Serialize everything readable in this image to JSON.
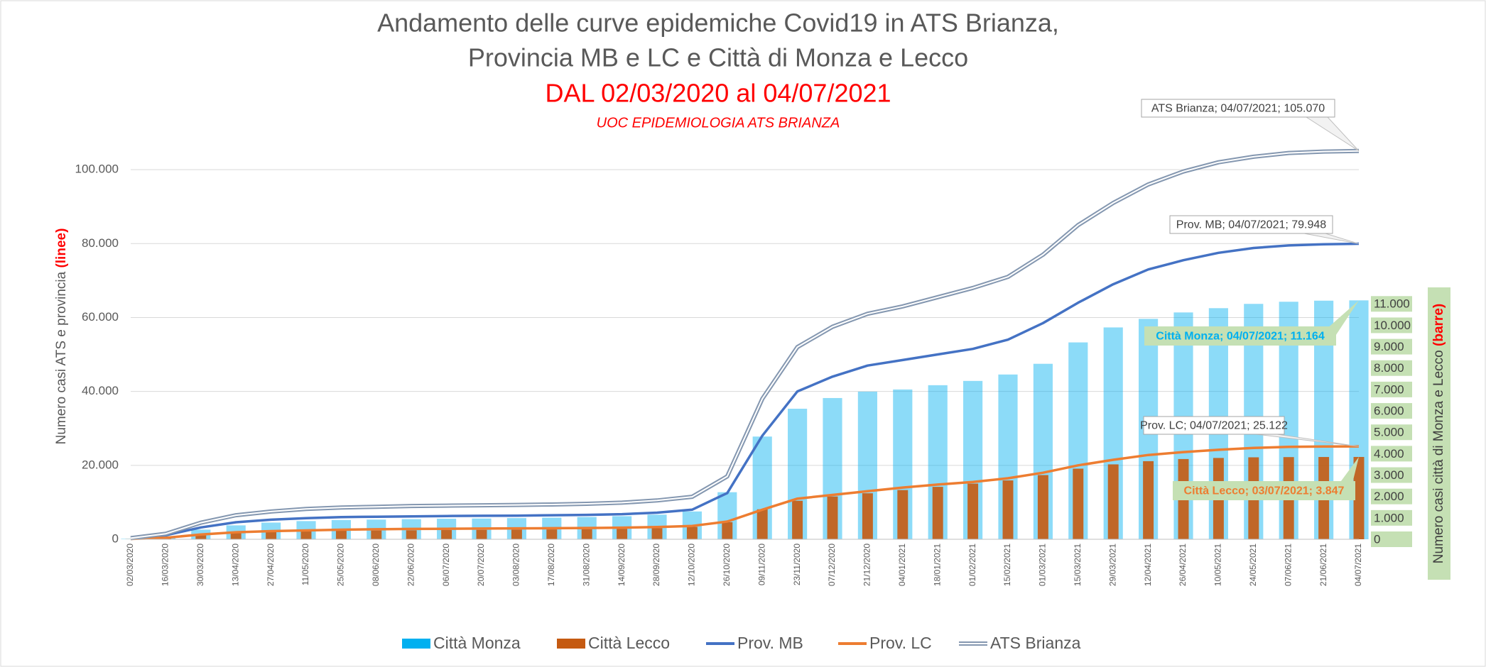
{
  "chart_data": {
    "type": "combo",
    "title": [
      "Andamento delle curve epidemiche Covid19 in ATS Brianza,",
      "Provincia MB e LC e Città di Monza e Lecco"
    ],
    "subtitle": "DAL 02/03/2020 al 04/07/2021",
    "source": "UOC EPIDEMIOLOGIA ATS BRIANZA",
    "y_label": [
      "Numero casi ATS e  provincia ",
      "(linee)"
    ],
    "y2_label": [
      "Numero casi città di Monza e Lecco ",
      "(barre)"
    ],
    "categories": [
      "02/03/2020",
      "16/03/2020",
      "30/03/2020",
      "13/04/2020",
      "27/04/2020",
      "11/05/2020",
      "25/05/2020",
      "08/06/2020",
      "22/06/2020",
      "06/07/2020",
      "20/07/2020",
      "03/08/2020",
      "17/08/2020",
      "31/08/2020",
      "14/09/2020",
      "28/09/2020",
      "12/10/2020",
      "26/10/2020",
      "09/11/2020",
      "23/11/2020",
      "07/12/2020",
      "21/12/2020",
      "04/01/2021",
      "18/01/2021",
      "01/02/2021",
      "15/02/2021",
      "01/03/2021",
      "15/03/2021",
      "29/03/2021",
      "12/04/2021",
      "26/04/2021",
      "10/05/2021",
      "24/05/2021",
      "07/06/2021",
      "21/06/2021",
      "04/07/2021"
    ],
    "series": [
      {
        "name": "Città Monza",
        "type": "bar",
        "axis": "y2",
        "color": "#00b0f0",
        "values": [
          20,
          150,
          450,
          650,
          780,
          850,
          900,
          920,
          940,
          960,
          970,
          990,
          1010,
          1040,
          1080,
          1150,
          1300,
          2200,
          4800,
          6100,
          6600,
          6900,
          7000,
          7200,
          7400,
          7700,
          8200,
          9200,
          9900,
          10300,
          10600,
          10800,
          11000,
          11100,
          11150,
          11164
        ]
      },
      {
        "name": "Città Lecco",
        "type": "bar",
        "axis": "y2",
        "color": "#c55a11",
        "values": [
          5,
          50,
          180,
          300,
          350,
          380,
          400,
          410,
          420,
          430,
          440,
          450,
          460,
          470,
          490,
          520,
          580,
          800,
          1400,
          1800,
          2000,
          2150,
          2300,
          2450,
          2600,
          2750,
          3000,
          3300,
          3500,
          3650,
          3750,
          3800,
          3830,
          3840,
          3845,
          3847
        ]
      },
      {
        "name": "Prov. MB",
        "type": "line",
        "color": "#4472c4",
        "values": [
          200,
          1100,
          3200,
          4600,
          5300,
          5700,
          6000,
          6100,
          6200,
          6300,
          6350,
          6400,
          6500,
          6600,
          6800,
          7200,
          8000,
          12500,
          28000,
          40000,
          44000,
          47000,
          48500,
          50000,
          51500,
          54000,
          58500,
          64000,
          69000,
          73000,
          75500,
          77500,
          78800,
          79500,
          79800,
          79948
        ]
      },
      {
        "name": "Prov. LC",
        "type": "line",
        "color": "#ed7d31",
        "values": [
          100,
          400,
          1300,
          1900,
          2200,
          2400,
          2600,
          2700,
          2800,
          2850,
          2900,
          2950,
          3000,
          3050,
          3150,
          3300,
          3600,
          4800,
          8000,
          11000,
          12000,
          13000,
          14000,
          14800,
          15500,
          16500,
          18000,
          20000,
          21500,
          22800,
          23600,
          24200,
          24700,
          25000,
          25100,
          25122
        ]
      },
      {
        "name": "ATS Brianza",
        "type": "line",
        "double": true,
        "color": "#8497b0",
        "values": [
          300,
          1500,
          4500,
          6500,
          7500,
          8200,
          8600,
          8800,
          9000,
          9100,
          9200,
          9300,
          9400,
          9600,
          9900,
          10500,
          11500,
          17000,
          38000,
          52000,
          57500,
          61000,
          63000,
          65500,
          68000,
          71000,
          77000,
          85000,
          91000,
          96000,
          99500,
          102000,
          103500,
          104500,
          104900,
          105070
        ]
      }
    ],
    "annotations": [
      "ATS Brianza; 04/07/2021; 105.070",
      "Prov. MB; 04/07/2021; 79.948",
      "Città Monza; 04/07/2021; 11.164",
      "Prov. LC; 04/07/2021; 25.122",
      "Città Lecco; 03/07/2021; 3.847"
    ],
    "ylim": [
      0,
      110000
    ],
    "yticks": [
      0,
      {
        "value": 20000,
        "label": "20.000"
      },
      {
        "value": 40000,
        "label": "40.000"
      },
      {
        "value": 60000,
        "label": "60.000"
      },
      {
        "value": 80000,
        "label": "80.000"
      },
      {
        "value": 100000,
        "label": "100.000"
      }
    ],
    "y2lim": [
      0,
      19000
    ],
    "y2ticks": [
      0,
      {
        "value": 1000,
        "label": "1.000"
      },
      {
        "value": 2000,
        "label": "2.000"
      },
      {
        "value": 3000,
        "label": "3.000"
      },
      {
        "value": 4000,
        "label": "4.000"
      },
      {
        "value": 5000,
        "label": "5.000"
      },
      {
        "value": 6000,
        "label": "6.000"
      },
      {
        "value": 7000,
        "label": "7.000"
      },
      {
        "value": 8000,
        "label": "8.000"
      },
      {
        "value": 9000,
        "label": "9.000"
      },
      {
        "value": 10000,
        "label": "10.000"
      },
      {
        "value": 11000,
        "label": "11.000"
      }
    ],
    "grid": true,
    "legend": "bottom"
  }
}
